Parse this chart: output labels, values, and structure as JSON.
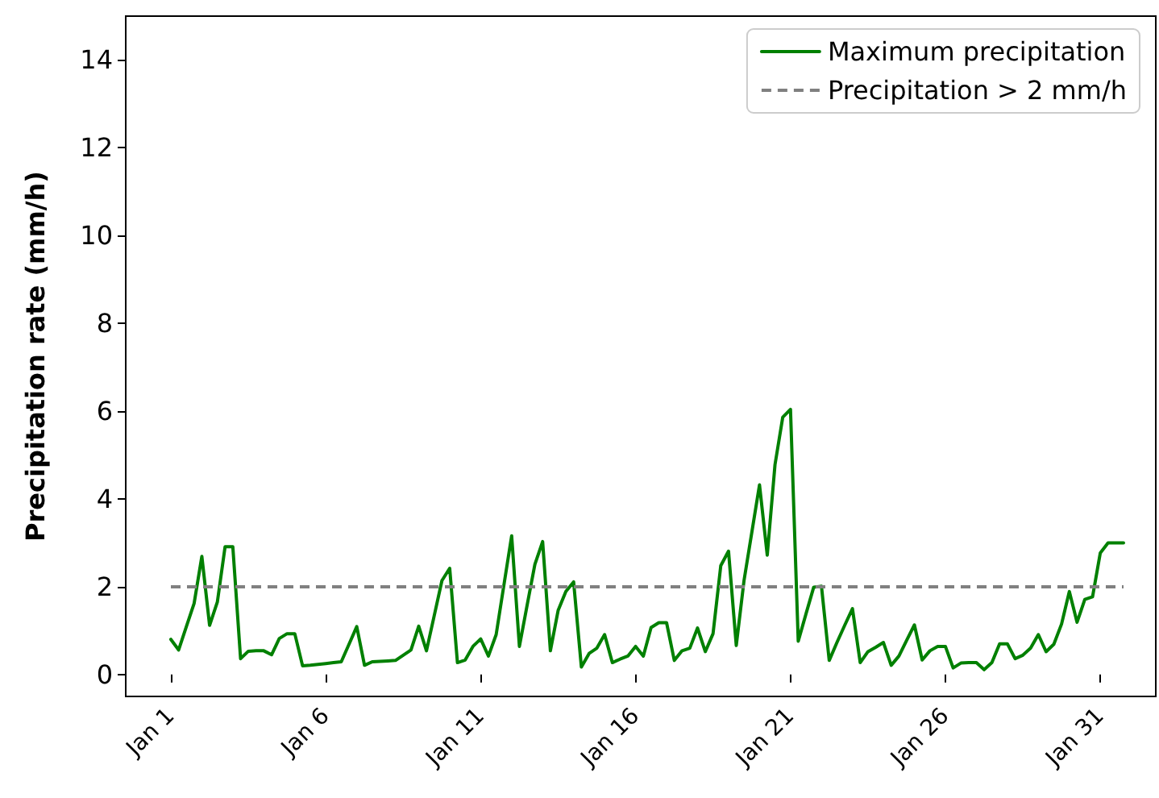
{
  "chart_data": {
    "type": "line",
    "ylabel": "Precipitation rate (mm/h)",
    "categories": [
      "Jan 1",
      null,
      null,
      null,
      null,
      null,
      null,
      null,
      null,
      null,
      null,
      null,
      null,
      null,
      null,
      null,
      null,
      null,
      null,
      null,
      "Jan 6",
      null,
      null,
      null,
      null,
      null,
      null,
      null,
      null,
      null,
      null,
      null,
      null,
      null,
      null,
      null,
      null,
      null,
      null,
      null,
      "Jan 11",
      null,
      null,
      null,
      null,
      null,
      null,
      null,
      null,
      null,
      null,
      null,
      null,
      null,
      null,
      null,
      null,
      null,
      null,
      null,
      "Jan 16",
      null,
      null,
      null,
      null,
      null,
      null,
      null,
      null,
      null,
      null,
      null,
      null,
      null,
      null,
      null,
      null,
      null,
      null,
      null,
      "Jan 21",
      null,
      null,
      null,
      null,
      null,
      null,
      null,
      null,
      null,
      null,
      null,
      null,
      null,
      null,
      null,
      null,
      null,
      null,
      null,
      "Jan 26",
      null,
      null,
      null,
      null,
      null,
      null,
      null,
      null,
      null,
      null,
      null,
      null,
      null,
      null,
      null,
      null,
      null,
      null,
      null,
      "Jan 31",
      null,
      null,
      null
    ],
    "ylim": [
      -0.5,
      15
    ],
    "yticks": [
      0,
      2,
      4,
      6,
      8,
      10,
      12,
      14
    ],
    "grid": false,
    "legend": "top right",
    "marker": "none",
    "line_style": "solid",
    "series": [
      {
        "name": "Maximum precipitation",
        "color": "#008000",
        "values": [
          0.8,
          0.56,
          1.09,
          1.62,
          2.69,
          1.12,
          1.65,
          2.91,
          2.91,
          0.36,
          0.53,
          0.54,
          0.54,
          0.45,
          0.82,
          0.93,
          0.93,
          0.2,
          0.21,
          0.23,
          0.25,
          0.27,
          0.29,
          0.69,
          1.09,
          0.21,
          0.29,
          0.3,
          0.31,
          0.32,
          0.44,
          0.56,
          1.1,
          0.54,
          1.34,
          2.14,
          2.42,
          0.27,
          0.33,
          0.64,
          0.81,
          0.42,
          0.91,
          2.04,
          3.16,
          0.64,
          1.58,
          2.51,
          3.03,
          0.54,
          1.46,
          1.89,
          2.11,
          0.17,
          0.48,
          0.6,
          0.91,
          0.27,
          0.35,
          0.42,
          0.64,
          0.42,
          1.07,
          1.18,
          1.18,
          0.32,
          0.54,
          0.6,
          1.06,
          0.52,
          0.93,
          2.48,
          2.81,
          0.66,
          2.14,
          3.23,
          4.32,
          2.72,
          4.78,
          5.86,
          6.04,
          0.76,
          1.38,
          1.99,
          2.01,
          0.32,
          0.73,
          1.12,
          1.5,
          0.27,
          0.52,
          0.62,
          0.73,
          0.21,
          0.42,
          0.78,
          1.13,
          0.33,
          0.54,
          0.64,
          0.64,
          0.15,
          0.26,
          0.27,
          0.27,
          0.11,
          0.27,
          0.7,
          0.7,
          0.36,
          0.44,
          0.6,
          0.91,
          0.52,
          0.69,
          1.15,
          1.89,
          1.19,
          1.71,
          1.77,
          2.77,
          3.0,
          3.0,
          3.0
        ]
      }
    ],
    "ref_lines": [
      {
        "axis": "y",
        "value": 2,
        "label": "Precipitation > 2 mm/h",
        "color": "#808080",
        "line_style": "dashed"
      }
    ]
  }
}
